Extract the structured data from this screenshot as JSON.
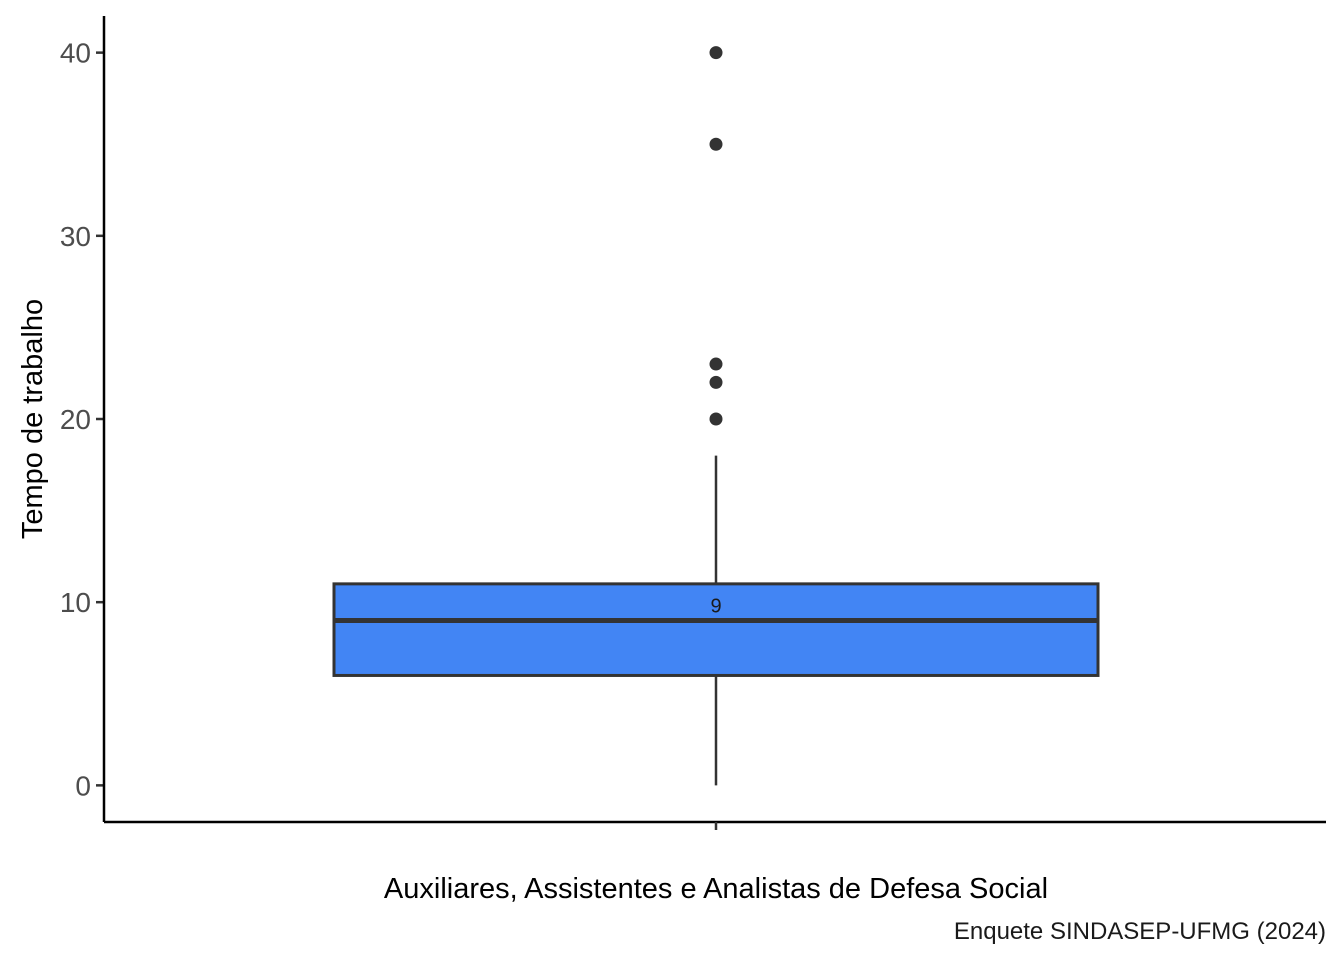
{
  "chart_data": {
    "type": "box",
    "category": "Auxiliares, Assistentes e Analistas de Defesa Social",
    "ylabel": "Tempo de trabalho",
    "xlabel": "Auxiliares, Assistentes e Analistas de Defesa Social",
    "caption": "Enquete SINDASEP-UFMG (2024)",
    "y_ticks": [
      0,
      10,
      20,
      30,
      40
    ],
    "ylim": [
      -2,
      42
    ],
    "box": {
      "lower_whisker": 0,
      "q1": 6,
      "median": 9,
      "q3": 11,
      "upper_whisker": 18
    },
    "median_label": "9",
    "outliers": [
      20,
      22,
      23,
      35,
      40
    ],
    "fill_color": "#4285f4",
    "line_color": "#333333",
    "grid": false
  }
}
